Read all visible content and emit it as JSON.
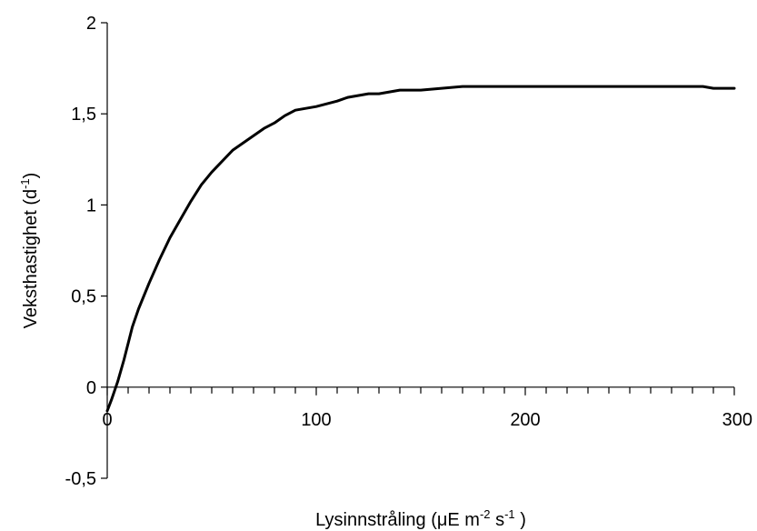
{
  "chart_data": {
    "type": "line",
    "title": "",
    "xlabel": {
      "prefix": "Lysinnstråling (μE m",
      "sup1": "-2",
      "mid": " s",
      "sup2": "-1",
      "suffix": " )"
    },
    "ylabel": {
      "prefix": "Veksthastighet (d",
      "sup": "-1",
      "suffix": ")"
    },
    "xlim": [
      0,
      300
    ],
    "ylim": [
      -0.5,
      2
    ],
    "x_tick_values": [
      0,
      100,
      200,
      300
    ],
    "x_tick_labels": [
      "0",
      "100",
      "200",
      "300"
    ],
    "x_minor_step": 10,
    "y_tick_values": [
      -0.5,
      0,
      0.5,
      1,
      1.5,
      2
    ],
    "y_tick_labels": [
      "-0,5",
      "0",
      "0,5",
      "1",
      "1,5",
      "2"
    ],
    "grid": false,
    "legend": "none",
    "colors": {
      "line": "#000000",
      "axes": "#000000",
      "background": "#ffffff"
    },
    "series": [
      {
        "x": [
          0,
          2,
          5,
          8,
          10,
          12,
          15,
          20,
          25,
          30,
          35,
          40,
          45,
          50,
          60,
          70,
          75,
          80,
          85,
          90,
          95,
          100,
          110,
          115,
          120,
          125,
          130,
          135,
          140,
          150,
          160,
          170,
          180,
          200,
          220,
          250,
          280,
          285,
          290,
          300
        ],
        "y": [
          -0.13,
          -0.07,
          0.03,
          0.15,
          0.24,
          0.33,
          0.43,
          0.57,
          0.7,
          0.82,
          0.92,
          1.02,
          1.11,
          1.18,
          1.3,
          1.38,
          1.42,
          1.45,
          1.49,
          1.52,
          1.53,
          1.54,
          1.57,
          1.59,
          1.6,
          1.61,
          1.61,
          1.62,
          1.63,
          1.63,
          1.64,
          1.65,
          1.65,
          1.65,
          1.65,
          1.65,
          1.65,
          1.65,
          1.64,
          1.64
        ]
      }
    ]
  }
}
